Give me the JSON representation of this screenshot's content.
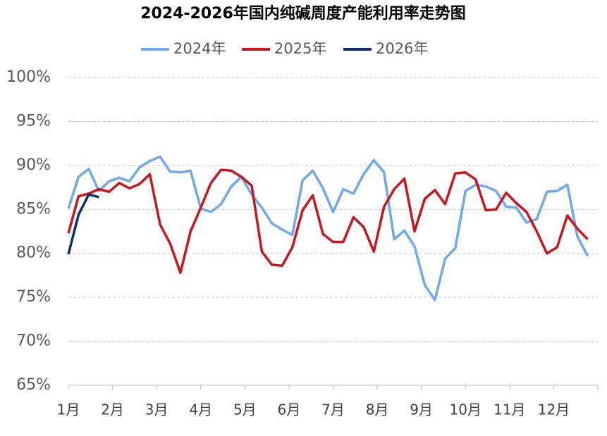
{
  "chart_data": {
    "type": "line",
    "title": "2024-2026年国内纯碱周度产能利用率走势图",
    "x_labels": [
      "1月",
      "2月",
      "3月",
      "4月",
      "5月",
      "6月",
      "7月",
      "8月",
      "9月",
      "10月",
      "11月",
      "12月"
    ],
    "points_per_axis": 52,
    "ylim": [
      65,
      100
    ],
    "yticks": [
      {
        "value": 65,
        "label": "65%"
      },
      {
        "value": 70,
        "label": "70%"
      },
      {
        "value": 75,
        "label": "75%"
      },
      {
        "value": 80,
        "label": "80%"
      },
      {
        "value": 85,
        "label": "85%"
      },
      {
        "value": 90,
        "label": "90%"
      },
      {
        "value": 95,
        "label": "95%"
      },
      {
        "value": 100,
        "label": "100%"
      }
    ],
    "grid": true,
    "series": [
      {
        "name": "2024年",
        "color": "#6fa8f0",
        "values": [
          85.1,
          88.7,
          89.6,
          87.1,
          88.2,
          88.6,
          88.2,
          89.8,
          90.5,
          91.0,
          89.3,
          89.2,
          89.4,
          85.1,
          84.7,
          85.6,
          87.6,
          88.7,
          86.7,
          85.2,
          83.4,
          82.7,
          82.1,
          88.3,
          89.4,
          87.4,
          84.7,
          87.3,
          86.8,
          89.0,
          90.6,
          89.2,
          81.6,
          82.6,
          80.8,
          76.4,
          74.7,
          79.4,
          80.6,
          87.1,
          87.8,
          87.6,
          87.1,
          85.3,
          85.2,
          83.5,
          83.9,
          87.0,
          87.1,
          87.8,
          81.9,
          79.7
        ]
      },
      {
        "name": "2025年",
        "color": "#c8161d",
        "values": [
          82.3,
          86.5,
          86.8,
          87.3,
          87.0,
          88.0,
          87.4,
          87.9,
          89.0,
          83.3,
          81.1,
          77.8,
          82.5,
          85.2,
          88.0,
          89.5,
          89.4,
          88.7,
          87.7,
          80.2,
          78.7,
          78.6,
          80.7,
          84.9,
          86.6,
          82.2,
          81.3,
          81.3,
          84.1,
          83.0,
          80.2,
          85.3,
          87.3,
          88.5,
          82.5,
          86.2,
          87.2,
          85.6,
          89.1,
          89.2,
          88.4,
          84.9,
          85.0,
          86.9,
          85.7,
          84.7,
          82.5,
          80.0,
          80.7,
          84.3,
          82.8,
          81.6
        ]
      },
      {
        "name": "2026年",
        "color": "#0d2f6e",
        "values": [
          79.9,
          84.4,
          86.7,
          86.4
        ]
      }
    ]
  }
}
